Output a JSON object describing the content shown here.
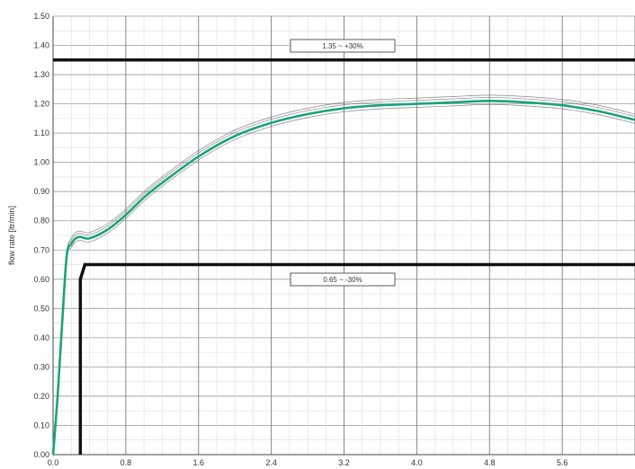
{
  "chart_data": {
    "type": "line",
    "title": "",
    "xlabel": "",
    "ylabel": "flow rate [ltr/min]",
    "xlim": [
      0,
      6.4
    ],
    "ylim": [
      0,
      1.5
    ],
    "x_ticks": [
      0.0,
      0.8,
      1.6,
      2.4,
      3.2,
      4.0,
      4.8,
      5.6
    ],
    "x_tick_labels": [
      "0.0",
      "0.8",
      "1.6",
      "2.4",
      "3.2",
      "4.0",
      "4.8",
      "5.6"
    ],
    "y_ticks": [
      0.0,
      0.1,
      0.2,
      0.3,
      0.4,
      0.5,
      0.6,
      0.7,
      0.8,
      0.9,
      1.0,
      1.1,
      1.2,
      1.3,
      1.4,
      1.5
    ],
    "y_tick_labels": [
      "0.00",
      "0.10",
      "0.20",
      "0.30",
      "0.40",
      "0.50",
      "0.60",
      "0.70",
      "0.80",
      "0.90",
      "1.00",
      "1.10",
      "1.20",
      "1.30",
      "1.40",
      "1.50"
    ],
    "grid": true,
    "limits": [
      {
        "label": "1.35 ~ +30%",
        "y": 1.35
      },
      {
        "label": "0.65 ~ -30%",
        "y": 0.65,
        "x_start": 0.3
      }
    ],
    "series": [
      {
        "color": "#1aa37a",
        "x": [
          0.0,
          0.05,
          0.1,
          0.15,
          0.2,
          0.25,
          0.3,
          0.4,
          0.6,
          0.8,
          1.0,
          1.2,
          1.6,
          2.0,
          2.4,
          2.8,
          3.2,
          3.6,
          4.0,
          4.4,
          4.8,
          5.2,
          5.6,
          6.0,
          6.4
        ],
        "y": [
          0.0,
          0.2,
          0.45,
          0.68,
          0.72,
          0.74,
          0.745,
          0.74,
          0.77,
          0.82,
          0.88,
          0.93,
          1.02,
          1.09,
          1.135,
          1.165,
          1.185,
          1.195,
          1.2,
          1.205,
          1.21,
          1.205,
          1.195,
          1.175,
          1.145
        ]
      }
    ]
  }
}
